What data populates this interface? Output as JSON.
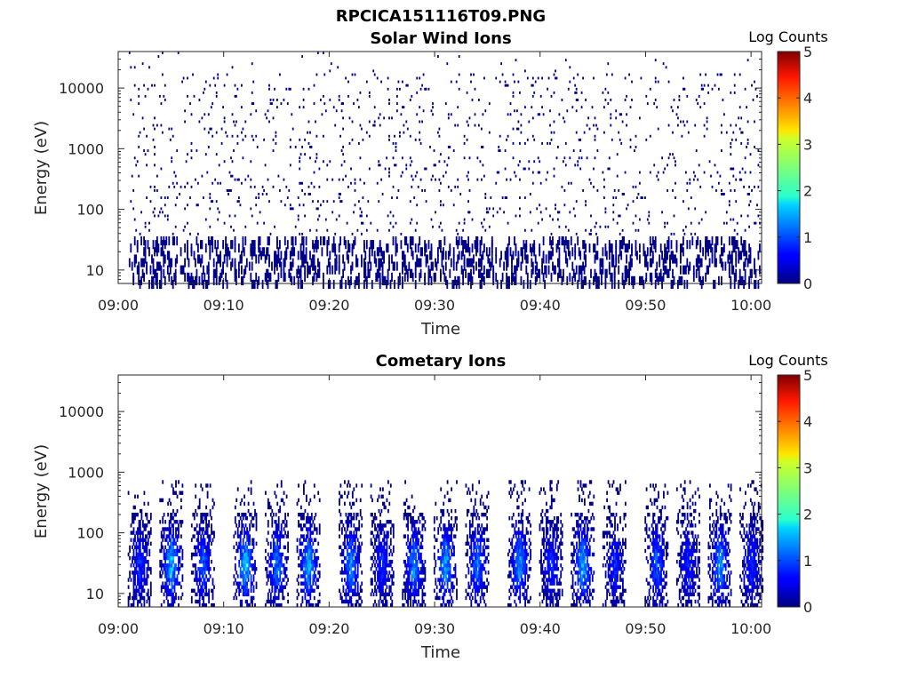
{
  "figure_title": "RPCICA151116T09.PNG",
  "colorbar_ticks": [
    "0",
    "1",
    "2",
    "3",
    "4",
    "5"
  ],
  "chart_data": [
    {
      "type": "heatmap",
      "title": "Solar Wind Ions",
      "xlabel": "Time",
      "ylabel": "Energy (eV)",
      "x_range": [
        "09:00",
        "10:01"
      ],
      "x_ticks": [
        "09:00",
        "09:10",
        "09:20",
        "09:30",
        "09:40",
        "09:50",
        "10:00"
      ],
      "y_scale": "log",
      "y_range": [
        6,
        40000
      ],
      "y_ticks": [
        "10",
        "100",
        "1000",
        "10000"
      ],
      "colorbar_label": "Log Counts",
      "color_range": [
        0,
        5
      ],
      "colormap": "jet",
      "description_values": {
        "background_level": "sparse single counts (log counts ~0) scattered from ~6 eV to ~30000 eV",
        "typical_log_counts": 0
      }
    },
    {
      "type": "heatmap",
      "title": "Cometary Ions",
      "xlabel": "Time",
      "ylabel": "Energy (eV)",
      "x_range": [
        "09:00",
        "10:01"
      ],
      "x_ticks": [
        "09:00",
        "09:10",
        "09:20",
        "09:30",
        "09:40",
        "09:50",
        "10:00"
      ],
      "y_scale": "log",
      "y_range": [
        6,
        40000
      ],
      "y_ticks": [
        "10",
        "100",
        "1000",
        "10000"
      ],
      "colorbar_label": "Log Counts",
      "color_range": [
        0,
        5
      ],
      "colormap": "jet",
      "bursts": [
        {
          "time": "09:02",
          "peak_log_counts": 1.0
        },
        {
          "time": "09:05",
          "peak_log_counts": 1.8
        },
        {
          "time": "09:08",
          "peak_log_counts": 1.3
        },
        {
          "time": "09:12",
          "peak_log_counts": 1.9
        },
        {
          "time": "09:15",
          "peak_log_counts": 1.5
        },
        {
          "time": "09:18",
          "peak_log_counts": 1.8
        },
        {
          "time": "09:22",
          "peak_log_counts": 1.6
        },
        {
          "time": "09:25",
          "peak_log_counts": 1.0
        },
        {
          "time": "09:28",
          "peak_log_counts": 1.6
        },
        {
          "time": "09:31",
          "peak_log_counts": 1.7
        },
        {
          "time": "09:34",
          "peak_log_counts": 1.5
        },
        {
          "time": "09:38",
          "peak_log_counts": 1.6
        },
        {
          "time": "09:41",
          "peak_log_counts": 1.0
        },
        {
          "time": "09:44",
          "peak_log_counts": 1.8
        },
        {
          "time": "09:47",
          "peak_log_counts": 1.0
        },
        {
          "time": "09:51",
          "peak_log_counts": 1.3
        },
        {
          "time": "09:54",
          "peak_log_counts": 1.0
        },
        {
          "time": "09:57",
          "peak_log_counts": 1.7
        },
        {
          "time": "10:00",
          "peak_log_counts": 1.0
        }
      ],
      "burst_energy_range": [
        6,
        600
      ]
    }
  ]
}
